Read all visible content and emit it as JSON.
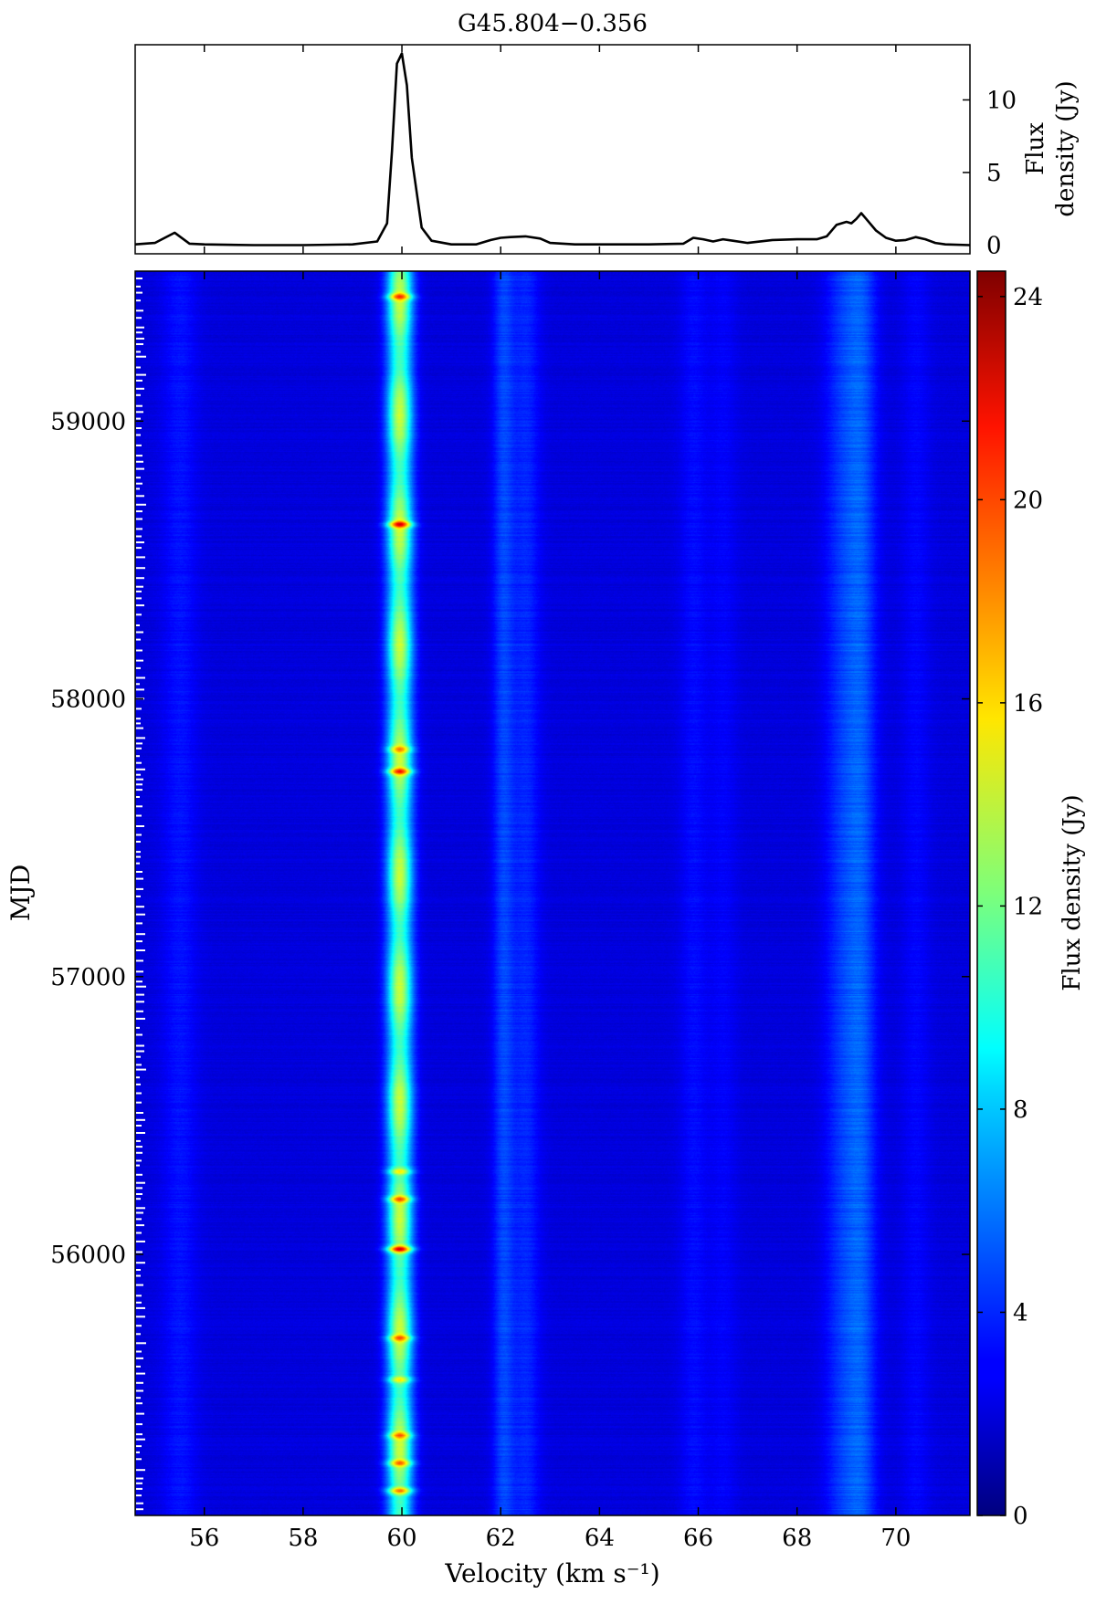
{
  "chart_data": {
    "title": "G45.804−0.356",
    "spectrum": {
      "type": "line",
      "ylabel_line1": "Flux",
      "ylabel_line2": "density (Jy)",
      "xlim": [
        54.6,
        71.5
      ],
      "ylim": [
        -0.6,
        13.8
      ],
      "yticks": [
        0,
        5,
        10
      ],
      "xticks": [
        56,
        58,
        60,
        62,
        64,
        66,
        68,
        70
      ],
      "x": [
        54.6,
        55.0,
        55.2,
        55.4,
        55.5,
        55.7,
        56.0,
        57.0,
        58.0,
        59.0,
        59.5,
        59.7,
        59.8,
        59.9,
        60.0,
        60.1,
        60.2,
        60.4,
        60.6,
        61.0,
        61.5,
        61.8,
        62.0,
        62.2,
        62.5,
        62.8,
        63.0,
        63.5,
        65.0,
        65.7,
        65.9,
        66.1,
        66.3,
        66.5,
        66.7,
        67.0,
        67.5,
        68.0,
        68.4,
        68.6,
        68.8,
        69.0,
        69.1,
        69.2,
        69.3,
        69.4,
        69.6,
        69.8,
        70.0,
        70.2,
        70.4,
        70.6,
        70.8,
        71.0,
        71.5
      ],
      "y": [
        0.05,
        0.15,
        0.5,
        0.85,
        0.6,
        0.1,
        0.05,
        0.0,
        0.0,
        0.05,
        0.25,
        1.5,
        6.5,
        12.5,
        13.2,
        11.0,
        6.0,
        1.2,
        0.3,
        0.05,
        0.05,
        0.35,
        0.5,
        0.55,
        0.6,
        0.45,
        0.15,
        0.05,
        0.05,
        0.1,
        0.5,
        0.4,
        0.25,
        0.4,
        0.3,
        0.15,
        0.35,
        0.4,
        0.4,
        0.6,
        1.4,
        1.6,
        1.5,
        1.8,
        2.2,
        1.8,
        1.0,
        0.5,
        0.3,
        0.35,
        0.55,
        0.4,
        0.15,
        0.05,
        0.0
      ]
    },
    "waterfall": {
      "type": "heatmap",
      "xlabel": "Velocity (km s⁻¹)",
      "ylabel": "MJD",
      "xlim": [
        54.6,
        71.5
      ],
      "ylim": [
        55060,
        59540
      ],
      "yticks": [
        56000,
        57000,
        58000,
        59000
      ],
      "xticks": [
        56,
        58,
        60,
        62,
        64,
        66,
        68,
        70
      ],
      "components": [
        {
          "v": 55.5,
          "width": 0.25,
          "flux": 1.4
        },
        {
          "v": 59.95,
          "width": 0.18,
          "flux": 12.5
        },
        {
          "v": 62.05,
          "width": 0.15,
          "flux": 2.8
        },
        {
          "v": 62.5,
          "width": 0.2,
          "flux": 2.0
        },
        {
          "v": 65.9,
          "width": 0.2,
          "flux": 1.2
        },
        {
          "v": 66.5,
          "width": 0.2,
          "flux": 0.9
        },
        {
          "v": 68.9,
          "width": 0.25,
          "flux": 2.2
        },
        {
          "v": 69.3,
          "width": 0.22,
          "flux": 3.0
        },
        {
          "v": 70.4,
          "width": 0.2,
          "flux": 1.0
        }
      ],
      "hotspots": [
        {
          "mjd": 56020,
          "flux": 24
        },
        {
          "mjd": 56200,
          "flux": 20
        },
        {
          "mjd": 55700,
          "flux": 19
        },
        {
          "mjd": 55250,
          "flux": 19
        },
        {
          "mjd": 55150,
          "flux": 21
        },
        {
          "mjd": 55350,
          "flux": 19
        },
        {
          "mjd": 55550,
          "flux": 18
        },
        {
          "mjd": 56300,
          "flux": 18
        },
        {
          "mjd": 57740,
          "flux": 21
        },
        {
          "mjd": 57820,
          "flux": 18
        },
        {
          "mjd": 58630,
          "flux": 22
        },
        {
          "mjd": 59450,
          "flux": 20
        }
      ],
      "observation_tick_density": "dense"
    },
    "colorbar": {
      "label": "Flux density (Jy)",
      "range": [
        0,
        24.5
      ],
      "ticks": [
        0,
        4,
        8,
        12,
        16,
        20,
        24
      ],
      "colormap": "jet"
    }
  }
}
